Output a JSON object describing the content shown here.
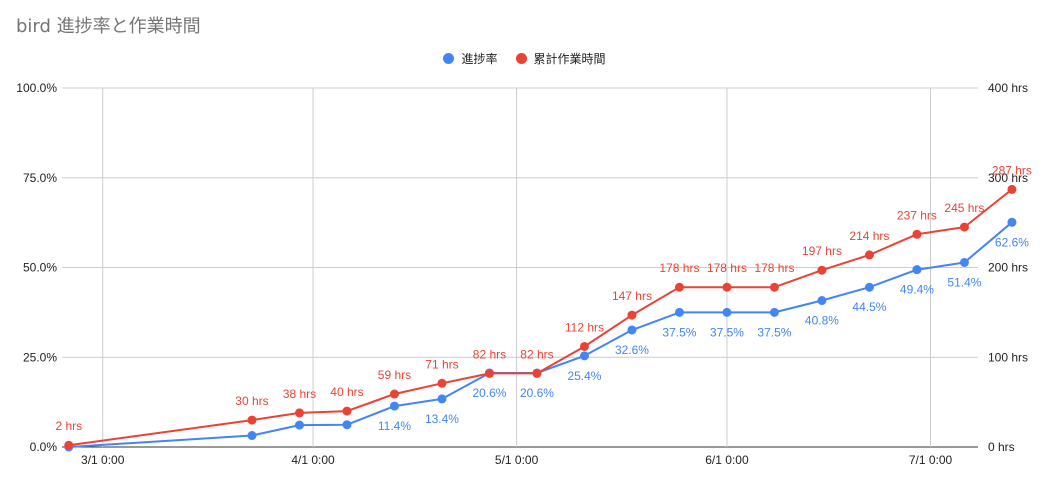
{
  "chart_data": {
    "type": "line",
    "title": "bird 進捗率と作業時間",
    "legend_position": "top",
    "grid": true,
    "x_axis": {
      "type": "date",
      "range": [
        "2023-02-23",
        "2023-07-08"
      ],
      "tick_labels": [
        {
          "date": "2023-03-01",
          "label": "3/1 0:00"
        },
        {
          "date": "2023-04-01",
          "label": "4/1 0:00"
        },
        {
          "date": "2023-05-01",
          "label": "5/1 0:00"
        },
        {
          "date": "2023-06-01",
          "label": "6/1 0:00"
        },
        {
          "date": "2023-07-01",
          "label": "7/1 0:00"
        }
      ]
    },
    "y_left": {
      "range": [
        0,
        100
      ],
      "unit": "%",
      "tick_values": [
        0,
        25,
        50,
        75,
        100
      ],
      "tick_labels": [
        "0.0%",
        "25.0%",
        "50.0%",
        "75.0%",
        "100.0%"
      ]
    },
    "y_right": {
      "range": [
        0,
        400
      ],
      "unit": "hrs",
      "tick_values": [
        0,
        100,
        200,
        300,
        400
      ],
      "tick_labels": [
        "0 hrs",
        "100 hrs",
        "200 hrs",
        "300 hrs",
        "400 hrs"
      ]
    },
    "series": [
      {
        "name": "進捗率",
        "axis": "left",
        "color": "#4285f4",
        "points": [
          {
            "x": "2023-02-24",
            "y": 0,
            "label": ""
          },
          {
            "x": "2023-03-23",
            "y": 3.2,
            "label": ""
          },
          {
            "x": "2023-03-30",
            "y": 6.1,
            "label": ""
          },
          {
            "x": "2023-04-06",
            "y": 6.2,
            "label": ""
          },
          {
            "x": "2023-04-13",
            "y": 11.4,
            "label": "11.4%"
          },
          {
            "x": "2023-04-20",
            "y": 13.4,
            "label": "13.4%"
          },
          {
            "x": "2023-04-27",
            "y": 20.6,
            "label": "20.6%"
          },
          {
            "x": "2023-05-04",
            "y": 20.6,
            "label": "20.6%"
          },
          {
            "x": "2023-05-11",
            "y": 25.4,
            "label": "25.4%"
          },
          {
            "x": "2023-05-18",
            "y": 32.6,
            "label": "32.6%"
          },
          {
            "x": "2023-05-25",
            "y": 37.5,
            "label": "37.5%"
          },
          {
            "x": "2023-06-01",
            "y": 37.5,
            "label": "37.5%"
          },
          {
            "x": "2023-06-08",
            "y": 37.5,
            "label": "37.5%"
          },
          {
            "x": "2023-06-15",
            "y": 40.8,
            "label": "40.8%"
          },
          {
            "x": "2023-06-22",
            "y": 44.5,
            "label": "44.5%"
          },
          {
            "x": "2023-06-29",
            "y": 49.4,
            "label": "49.4%"
          },
          {
            "x": "2023-07-06",
            "y": 51.4,
            "label": "51.4%"
          },
          {
            "x": "2023-07-13",
            "y": 62.6,
            "label": "62.6%"
          }
        ]
      },
      {
        "name": "累計作業時間",
        "axis": "right",
        "color": "#ea4335",
        "points": [
          {
            "x": "2023-02-24",
            "y": 2,
            "label": "2 hrs"
          },
          {
            "x": "2023-03-23",
            "y": 30,
            "label": "30 hrs"
          },
          {
            "x": "2023-03-30",
            "y": 38,
            "label": "38 hrs"
          },
          {
            "x": "2023-04-06",
            "y": 40,
            "label": "40 hrs"
          },
          {
            "x": "2023-04-13",
            "y": 59,
            "label": "59 hrs"
          },
          {
            "x": "2023-04-20",
            "y": 71,
            "label": "71 hrs"
          },
          {
            "x": "2023-04-27",
            "y": 82,
            "label": "82 hrs"
          },
          {
            "x": "2023-05-04",
            "y": 82,
            "label": "82 hrs"
          },
          {
            "x": "2023-05-11",
            "y": 112,
            "label": "112 hrs"
          },
          {
            "x": "2023-05-18",
            "y": 147,
            "label": "147 hrs"
          },
          {
            "x": "2023-05-25",
            "y": 178,
            "label": "178 hrs"
          },
          {
            "x": "2023-06-01",
            "y": 178,
            "label": "178 hrs"
          },
          {
            "x": "2023-06-08",
            "y": 178,
            "label": "178 hrs"
          },
          {
            "x": "2023-06-15",
            "y": 197,
            "label": "197 hrs"
          },
          {
            "x": "2023-06-22",
            "y": 214,
            "label": "214 hrs"
          },
          {
            "x": "2023-06-29",
            "y": 237,
            "label": "237 hrs"
          },
          {
            "x": "2023-07-06",
            "y": 245,
            "label": "245 hrs"
          },
          {
            "x": "2023-07-13",
            "y": 287,
            "label": "287 hrs"
          }
        ]
      }
    ]
  }
}
